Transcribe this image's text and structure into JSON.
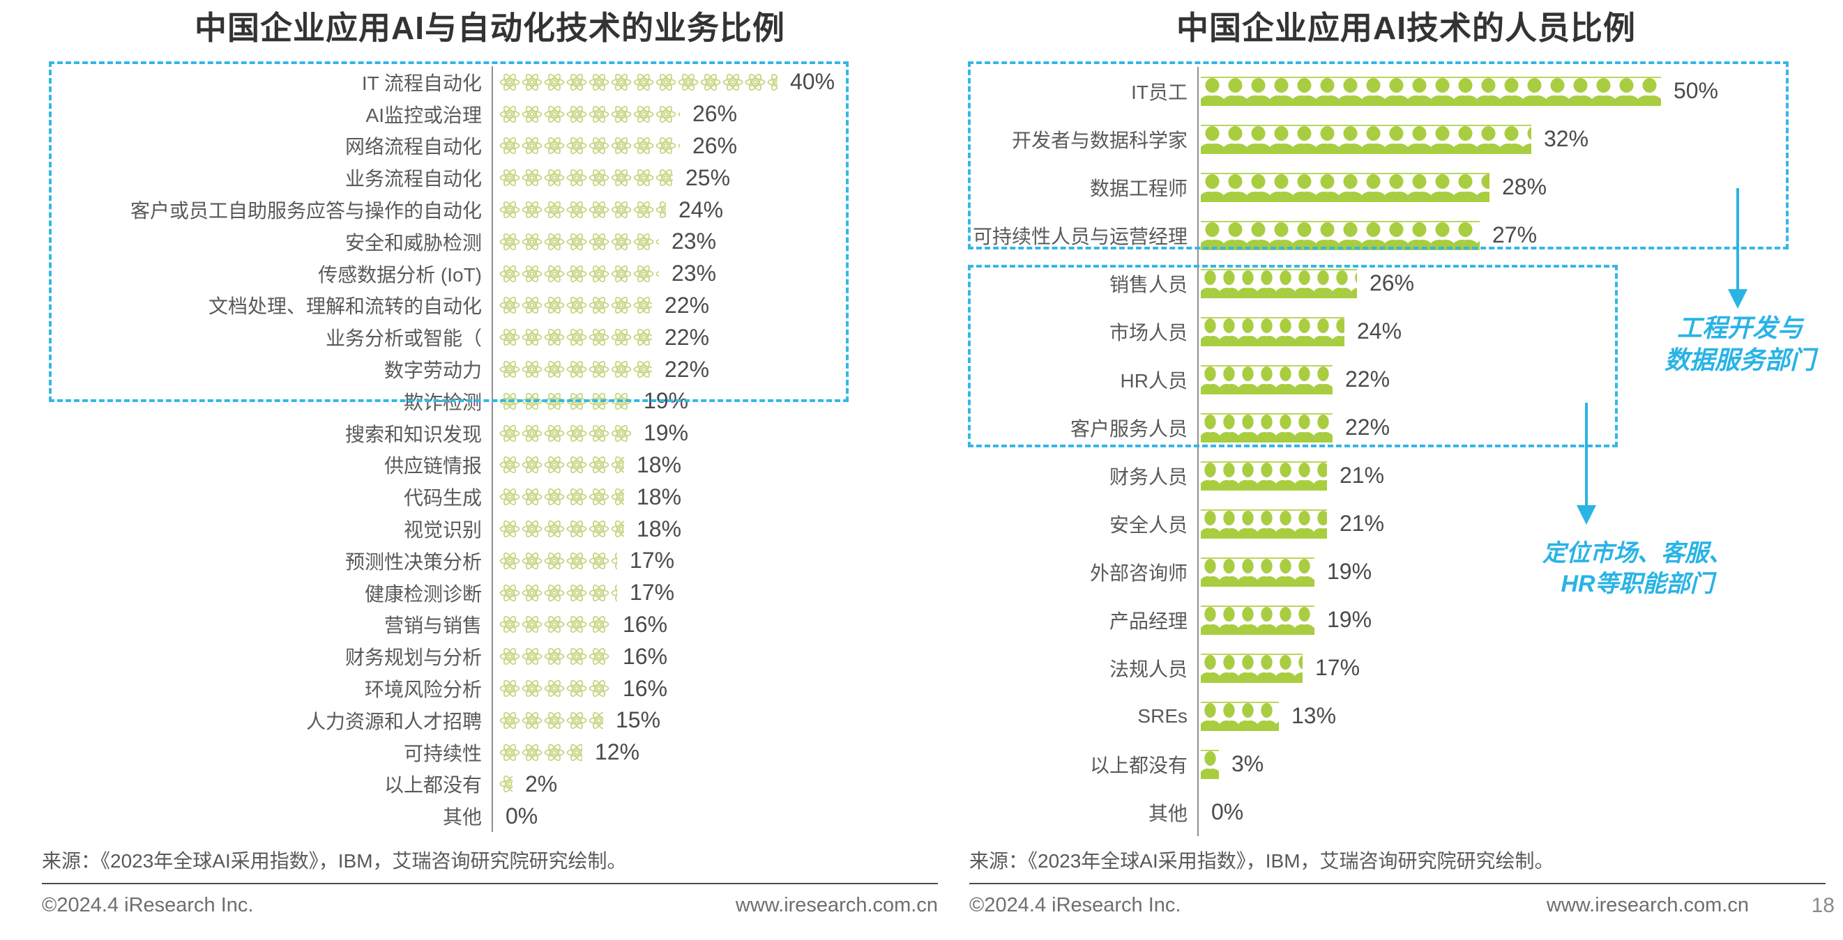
{
  "chart_data": [
    {
      "type": "bar",
      "variant": "pictogram",
      "icon": "atom",
      "title": "中国企业应用AI与自动化技术的业务比例",
      "unit": "%",
      "xlim": [
        0,
        40
      ],
      "categories": [
        "IT 流程自动化",
        "AI监控或治理",
        "网络流程自动化",
        "业务流程自动化",
        "客户或员工自助服务应答与操作的自动化",
        "安全和威胁检测",
        "传感数据分析 (IoT)",
        "文档处理、理解和流转的自动化",
        "业务分析或智能（",
        "数字劳动力",
        "欺诈检测",
        "搜索和知识发现",
        "供应链情报",
        "代码生成",
        "视觉识别",
        "预测性决策分析",
        "健康检测诊断",
        "营销与销售",
        "财务规划与分析",
        "环境风险分析",
        "人力资源和人才招聘",
        "可持续性",
        "以上都没有",
        "其他"
      ],
      "values": [
        40,
        26,
        26,
        25,
        24,
        23,
        23,
        22,
        22,
        22,
        19,
        19,
        18,
        18,
        18,
        17,
        17,
        16,
        16,
        16,
        15,
        12,
        2,
        0
      ],
      "highlight_box_rows": [
        0,
        9
      ],
      "source": "来源：《2023年全球AI采用指数》，IBM，艾瑞咨询研究院研究绘制。"
    },
    {
      "type": "bar",
      "variant": "pictogram",
      "icon": "person",
      "title": "中国企业应用AI技术的人员比例",
      "unit": "%",
      "xlim": [
        0,
        50
      ],
      "categories": [
        "IT员工",
        "开发者与数据科学家",
        "数据工程师",
        "可持续性人员与运营经理",
        "销售人员",
        "市场人员",
        "HR人员",
        "客户服务人员",
        "财务人员",
        "安全人员",
        "外部咨询师",
        "产品经理",
        "法规人员",
        "SREs",
        "以上都没有",
        "其他"
      ],
      "values": [
        50,
        32,
        28,
        27,
        26,
        24,
        22,
        22,
        21,
        21,
        19,
        19,
        17,
        13,
        3,
        0
      ],
      "highlight_boxes": [
        [
          0,
          3
        ],
        [
          4,
          7
        ]
      ],
      "annotations": [
        {
          "lines": [
            "工程开发与",
            "数据服务部门"
          ]
        },
        {
          "lines": [
            "定位市场、客服、",
            "HR等职能部门"
          ]
        }
      ],
      "source": "来源：《2023年全球AI采用指数》，IBM，艾瑞咨询研究院研究绘制。"
    }
  ],
  "footer": {
    "copyright": "©2024.4 iResearch Inc.",
    "website": "www.iresearch.com.cn",
    "page": "18"
  },
  "colors": {
    "accent_cyan": "#2ab4e4",
    "person_green": "#a9cd40",
    "atom_green": "#c4d57f"
  }
}
